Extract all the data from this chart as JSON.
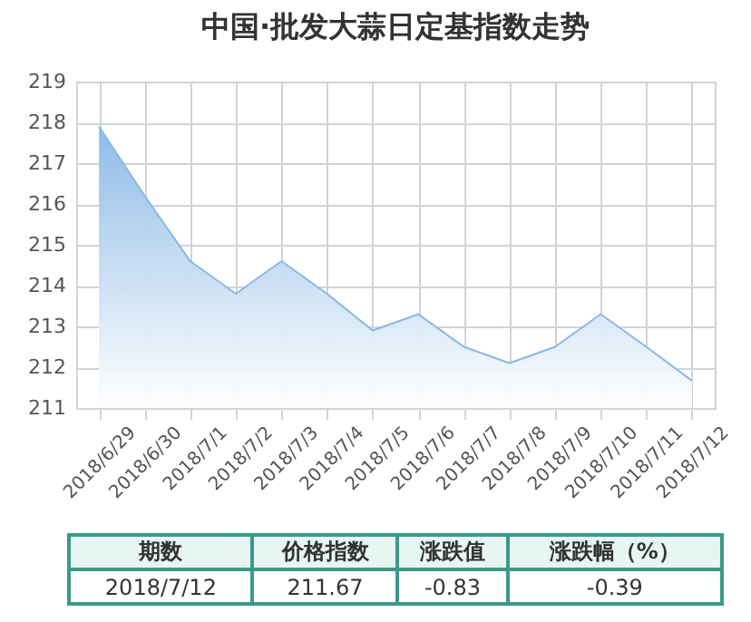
{
  "chart_data": {
    "type": "area",
    "title": "中国·批发大蒜日定基指数走势",
    "categories": [
      "2018/6/29",
      "2018/6/30",
      "2018/7/1",
      "2018/7/2",
      "2018/7/3",
      "2018/7/4",
      "2018/7/5",
      "2018/7/6",
      "2018/7/7",
      "2018/7/8",
      "2018/7/9",
      "2018/7/10",
      "2018/7/11",
      "2018/7/12"
    ],
    "values": [
      217.9,
      216.2,
      214.6,
      213.8,
      214.6,
      213.8,
      212.9,
      213.3,
      212.5,
      212.1,
      212.5,
      213.3,
      212.5,
      211.67
    ],
    "color": "#8ab8e6",
    "ylim": [
      211,
      219
    ],
    "yticks": [
      211,
      212,
      213,
      214,
      215,
      216,
      217,
      218,
      219
    ],
    "grid": true,
    "annotations": [
      "期数",
      "价格指数",
      "涨跌值",
      "涨跌幅（%）",
      "2018/7/12",
      "211.67",
      "-0.83",
      "-0.39"
    ]
  }
}
